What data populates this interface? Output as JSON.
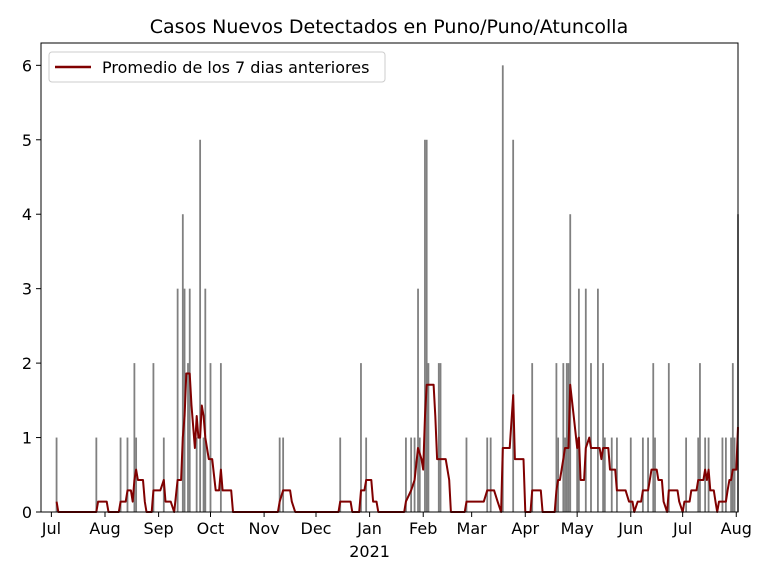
{
  "chart_data": {
    "type": "bar",
    "title": "Casos Nuevos Detectados en Puno/Puno/Atuncolla",
    "xlabel": "",
    "ylabel": "",
    "x_range": [
      "2020-07-04",
      "2021-08-02"
    ],
    "ylim": [
      0,
      6.3
    ],
    "y_ticks": [
      0,
      1,
      2,
      3,
      4,
      5,
      6
    ],
    "x_ticks": [
      {
        "date": "2020-07-01",
        "label": "Jul"
      },
      {
        "date": "2020-08-01",
        "label": "Aug"
      },
      {
        "date": "2020-09-01",
        "label": "Sep"
      },
      {
        "date": "2020-10-01",
        "label": "Oct"
      },
      {
        "date": "2020-11-01",
        "label": "Nov"
      },
      {
        "date": "2020-12-01",
        "label": "Dec"
      },
      {
        "date": "2021-01-01",
        "label": "Jan",
        "sublabel": "2021"
      },
      {
        "date": "2021-02-01",
        "label": "Feb"
      },
      {
        "date": "2021-03-01",
        "label": "Mar"
      },
      {
        "date": "2021-04-01",
        "label": "Apr"
      },
      {
        "date": "2021-05-01",
        "label": "May"
      },
      {
        "date": "2021-06-01",
        "label": "Jun"
      },
      {
        "date": "2021-07-01",
        "label": "Jul"
      },
      {
        "date": "2021-08-01",
        "label": "Aug"
      }
    ],
    "legend": {
      "label": "Promedio de los 7 dias anteriores",
      "position": "top-left"
    },
    "grid": false,
    "colors": {
      "bars": "#808080",
      "line": "#800000"
    },
    "series": [
      {
        "name": "",
        "kind": "bar",
        "points": [
          [
            "2020-07-04",
            1
          ],
          [
            "2020-07-27",
            1
          ],
          [
            "2020-08-10",
            1
          ],
          [
            "2020-08-14",
            1
          ],
          [
            "2020-08-18",
            2
          ],
          [
            "2020-08-19",
            1
          ],
          [
            "2020-08-29",
            2
          ],
          [
            "2020-09-04",
            1
          ],
          [
            "2020-09-12",
            3
          ],
          [
            "2020-09-15",
            4
          ],
          [
            "2020-09-16",
            3
          ],
          [
            "2020-09-18",
            2
          ],
          [
            "2020-09-19",
            3
          ],
          [
            "2020-09-23",
            1
          ],
          [
            "2020-09-25",
            5
          ],
          [
            "2020-09-27",
            1
          ],
          [
            "2020-09-28",
            3
          ],
          [
            "2020-10-01",
            2
          ],
          [
            "2020-10-07",
            2
          ],
          [
            "2020-11-10",
            1
          ],
          [
            "2020-11-12",
            1
          ],
          [
            "2020-12-15",
            1
          ],
          [
            "2020-12-27",
            2
          ],
          [
            "2020-12-30",
            1
          ],
          [
            "2021-01-22",
            1
          ],
          [
            "2021-01-25",
            1
          ],
          [
            "2021-01-27",
            1
          ],
          [
            "2021-01-29",
            3
          ],
          [
            "2021-01-30",
            1
          ],
          [
            "2021-02-02",
            5
          ],
          [
            "2021-02-03",
            5
          ],
          [
            "2021-02-04",
            2
          ],
          [
            "2021-02-10",
            2
          ],
          [
            "2021-02-11",
            2
          ],
          [
            "2021-02-26",
            1
          ],
          [
            "2021-03-10",
            1
          ],
          [
            "2021-03-12",
            1
          ],
          [
            "2021-03-19",
            6
          ],
          [
            "2021-03-25",
            5
          ],
          [
            "2021-04-05",
            2
          ],
          [
            "2021-04-19",
            2
          ],
          [
            "2021-04-20",
            1
          ],
          [
            "2021-04-23",
            2
          ],
          [
            "2021-04-24",
            1
          ],
          [
            "2021-04-25",
            2
          ],
          [
            "2021-04-26",
            2
          ],
          [
            "2021-04-27",
            4
          ],
          [
            "2021-05-01",
            1
          ],
          [
            "2021-05-02",
            3
          ],
          [
            "2021-05-06",
            3
          ],
          [
            "2021-05-09",
            2
          ],
          [
            "2021-05-13",
            3
          ],
          [
            "2021-05-16",
            2
          ],
          [
            "2021-05-17",
            1
          ],
          [
            "2021-05-21",
            1
          ],
          [
            "2021-05-24",
            1
          ],
          [
            "2021-06-01",
            1
          ],
          [
            "2021-06-08",
            1
          ],
          [
            "2021-06-11",
            1
          ],
          [
            "2021-06-14",
            2
          ],
          [
            "2021-06-15",
            1
          ],
          [
            "2021-06-23",
            2
          ],
          [
            "2021-07-03",
            1
          ],
          [
            "2021-07-10",
            1
          ],
          [
            "2021-07-11",
            2
          ],
          [
            "2021-07-14",
            1
          ],
          [
            "2021-07-16",
            1
          ],
          [
            "2021-07-24",
            1
          ],
          [
            "2021-07-26",
            1
          ],
          [
            "2021-07-29",
            1
          ],
          [
            "2021-07-30",
            2
          ],
          [
            "2021-07-31",
            1
          ],
          [
            "2021-08-02",
            4
          ]
        ]
      },
      {
        "name": "Promedio de los 7 dias anteriores",
        "kind": "line",
        "points": [
          [
            "2020-07-04",
            0.14
          ],
          [
            "2020-07-05",
            0
          ],
          [
            "2020-07-27",
            0
          ],
          [
            "2020-07-28",
            0.14
          ],
          [
            "2020-08-02",
            0.14
          ],
          [
            "2020-08-03",
            0
          ],
          [
            "2020-08-09",
            0
          ],
          [
            "2020-08-10",
            0.14
          ],
          [
            "2020-08-13",
            0.14
          ],
          [
            "2020-08-14",
            0.29
          ],
          [
            "2020-08-16",
            0.29
          ],
          [
            "2020-08-17",
            0.14
          ],
          [
            "2020-08-18",
            0.43
          ],
          [
            "2020-08-19",
            0.57
          ],
          [
            "2020-08-20",
            0.43
          ],
          [
            "2020-08-23",
            0.43
          ],
          [
            "2020-08-24",
            0.14
          ],
          [
            "2020-08-25",
            0
          ],
          [
            "2020-08-28",
            0
          ],
          [
            "2020-08-29",
            0.29
          ],
          [
            "2020-09-02",
            0.29
          ],
          [
            "2020-09-04",
            0.43
          ],
          [
            "2020-09-05",
            0.14
          ],
          [
            "2020-09-08",
            0.14
          ],
          [
            "2020-09-10",
            0
          ],
          [
            "2020-09-12",
            0.43
          ],
          [
            "2020-09-14",
            0.43
          ],
          [
            "2020-09-15",
            1.0
          ],
          [
            "2020-09-16",
            1.29
          ],
          [
            "2020-09-17",
            1.86
          ],
          [
            "2020-09-19",
            1.86
          ],
          [
            "2020-09-20",
            1.43
          ],
          [
            "2020-09-22",
            0.86
          ],
          [
            "2020-09-23",
            1.29
          ],
          [
            "2020-09-24",
            1.0
          ],
          [
            "2020-09-25",
            1.0
          ],
          [
            "2020-09-26",
            1.43
          ],
          [
            "2020-09-27",
            1.29
          ],
          [
            "2020-09-28",
            1.0
          ],
          [
            "2020-09-29",
            0.86
          ],
          [
            "2020-09-30",
            0.71
          ],
          [
            "2020-10-02",
            0.71
          ],
          [
            "2020-10-04",
            0.29
          ],
          [
            "2020-10-06",
            0.29
          ],
          [
            "2020-10-07",
            0.57
          ],
          [
            "2020-10-08",
            0.29
          ],
          [
            "2020-10-13",
            0.29
          ],
          [
            "2020-10-14",
            0
          ],
          [
            "2020-11-09",
            0
          ],
          [
            "2020-11-10",
            0.14
          ],
          [
            "2020-11-12",
            0.29
          ],
          [
            "2020-11-16",
            0.29
          ],
          [
            "2020-11-17",
            0.14
          ],
          [
            "2020-11-19",
            0
          ],
          [
            "2020-12-14",
            0
          ],
          [
            "2020-12-15",
            0.14
          ],
          [
            "2020-12-21",
            0.14
          ],
          [
            "2020-12-22",
            0
          ],
          [
            "2020-12-26",
            0
          ],
          [
            "2020-12-27",
            0.29
          ],
          [
            "2020-12-29",
            0.29
          ],
          [
            "2020-12-30",
            0.43
          ],
          [
            "2021-01-02",
            0.43
          ],
          [
            "2021-01-03",
            0.14
          ],
          [
            "2021-01-05",
            0.14
          ],
          [
            "2021-01-06",
            0
          ],
          [
            "2021-01-21",
            0
          ],
          [
            "2021-01-22",
            0.14
          ],
          [
            "2021-01-25",
            0.29
          ],
          [
            "2021-01-27",
            0.43
          ],
          [
            "2021-01-29",
            0.86
          ],
          [
            "2021-01-31",
            0.71
          ],
          [
            "2021-02-01",
            0.57
          ],
          [
            "2021-02-02",
            1.29
          ],
          [
            "2021-02-03",
            1.71
          ],
          [
            "2021-02-07",
            1.71
          ],
          [
            "2021-02-08",
            1.29
          ],
          [
            "2021-02-09",
            0.71
          ],
          [
            "2021-02-14",
            0.71
          ],
          [
            "2021-02-16",
            0.43
          ],
          [
            "2021-02-17",
            0
          ],
          [
            "2021-02-25",
            0
          ],
          [
            "2021-02-26",
            0.14
          ],
          [
            "2021-03-08",
            0.14
          ],
          [
            "2021-03-10",
            0.29
          ],
          [
            "2021-03-14",
            0.29
          ],
          [
            "2021-03-16",
            0.14
          ],
          [
            "2021-03-18",
            0
          ],
          [
            "2021-03-19",
            0.86
          ],
          [
            "2021-03-23",
            0.86
          ],
          [
            "2021-03-25",
            1.57
          ],
          [
            "2021-03-26",
            0.71
          ],
          [
            "2021-03-31",
            0.71
          ],
          [
            "2021-04-01",
            0
          ],
          [
            "2021-04-04",
            0
          ],
          [
            "2021-04-05",
            0.29
          ],
          [
            "2021-04-10",
            0.29
          ],
          [
            "2021-04-11",
            0
          ],
          [
            "2021-04-18",
            0
          ],
          [
            "2021-04-19",
            0.29
          ],
          [
            "2021-04-20",
            0.43
          ],
          [
            "2021-04-21",
            0.43
          ],
          [
            "2021-04-23",
            0.71
          ],
          [
            "2021-04-24",
            0.86
          ],
          [
            "2021-04-26",
            0.86
          ],
          [
            "2021-04-27",
            1.71
          ],
          [
            "2021-04-29",
            1.29
          ],
          [
            "2021-05-01",
            0.86
          ],
          [
            "2021-05-02",
            1.0
          ],
          [
            "2021-05-03",
            0.43
          ],
          [
            "2021-05-05",
            0.43
          ],
          [
            "2021-05-06",
            0.86
          ],
          [
            "2021-05-08",
            1.0
          ],
          [
            "2021-05-09",
            0.86
          ],
          [
            "2021-05-14",
            0.86
          ],
          [
            "2021-05-15",
            0.71
          ],
          [
            "2021-05-16",
            0.86
          ],
          [
            "2021-05-19",
            0.86
          ],
          [
            "2021-05-20",
            0.57
          ],
          [
            "2021-05-23",
            0.57
          ],
          [
            "2021-05-24",
            0.29
          ],
          [
            "2021-05-29",
            0.29
          ],
          [
            "2021-05-31",
            0.14
          ],
          [
            "2021-06-02",
            0.14
          ],
          [
            "2021-06-03",
            0
          ],
          [
            "2021-06-05",
            0.14
          ],
          [
            "2021-06-07",
            0.14
          ],
          [
            "2021-06-08",
            0.29
          ],
          [
            "2021-06-11",
            0.29
          ],
          [
            "2021-06-13",
            0.57
          ],
          [
            "2021-06-16",
            0.57
          ],
          [
            "2021-06-17",
            0.43
          ],
          [
            "2021-06-19",
            0.43
          ],
          [
            "2021-06-20",
            0.14
          ],
          [
            "2021-06-22",
            0
          ],
          [
            "2021-06-23",
            0.29
          ],
          [
            "2021-06-28",
            0.29
          ],
          [
            "2021-06-29",
            0.14
          ],
          [
            "2021-07-01",
            0
          ],
          [
            "2021-07-02",
            0.14
          ],
          [
            "2021-07-05",
            0.14
          ],
          [
            "2021-07-06",
            0.29
          ],
          [
            "2021-07-09",
            0.29
          ],
          [
            "2021-07-10",
            0.43
          ],
          [
            "2021-07-13",
            0.43
          ],
          [
            "2021-07-14",
            0.57
          ],
          [
            "2021-07-15",
            0.43
          ],
          [
            "2021-07-16",
            0.57
          ],
          [
            "2021-07-17",
            0.29
          ],
          [
            "2021-07-19",
            0.29
          ],
          [
            "2021-07-20",
            0.14
          ],
          [
            "2021-07-21",
            0
          ],
          [
            "2021-07-22",
            0.14
          ],
          [
            "2021-07-26",
            0.14
          ],
          [
            "2021-07-27",
            0.29
          ],
          [
            "2021-07-28",
            0.43
          ],
          [
            "2021-07-29",
            0.43
          ],
          [
            "2021-07-30",
            0.57
          ],
          [
            "2021-08-01",
            0.57
          ],
          [
            "2021-08-02",
            1.14
          ]
        ]
      }
    ]
  }
}
